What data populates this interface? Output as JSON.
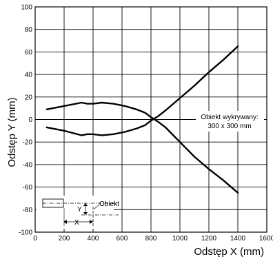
{
  "chart_data": {
    "type": "line",
    "xlabel": "Odstęp X (mm)",
    "ylabel": "Odstęp Y (mm)",
    "xlim": [
      0,
      1600
    ],
    "ylim": [
      -100,
      100
    ],
    "x_ticks": [
      "0",
      "200",
      "400",
      "600",
      "800",
      "1000",
      "1200",
      "1400",
      "1600"
    ],
    "y_ticks": [
      "100",
      "80",
      "60",
      "40",
      "20",
      "0",
      "-20",
      "-40",
      "-60",
      "-80",
      "-100"
    ],
    "grid": true,
    "series": [
      {
        "x": [
          80,
          200,
          320,
          360,
          400,
          460,
          540,
          620,
          700,
          760,
          800,
          850,
          900,
          1000,
          1100,
          1200,
          1300,
          1400
        ],
        "values": [
          9,
          12,
          15,
          14,
          14,
          15,
          14,
          12,
          9,
          6,
          2,
          -2,
          -7,
          -20,
          -33,
          -44,
          -54,
          -65
        ]
      },
      {
        "x": [
          80,
          200,
          320,
          360,
          400,
          460,
          540,
          620,
          700,
          760,
          800,
          850,
          900,
          1000,
          1100,
          1200,
          1300,
          1400
        ],
        "values": [
          -7,
          -10,
          -14,
          -13,
          -13,
          -14,
          -13,
          -11,
          -8,
          -5,
          -1,
          3,
          8,
          19,
          30,
          42,
          53,
          65
        ]
      }
    ],
    "annotations": {
      "object_label": "Obiekt wykrywany:",
      "object_size": "300 x 300 mm"
    },
    "inset": {
      "object_label": "Obiekt",
      "y_label": "Y",
      "x_label": "X"
    }
  }
}
